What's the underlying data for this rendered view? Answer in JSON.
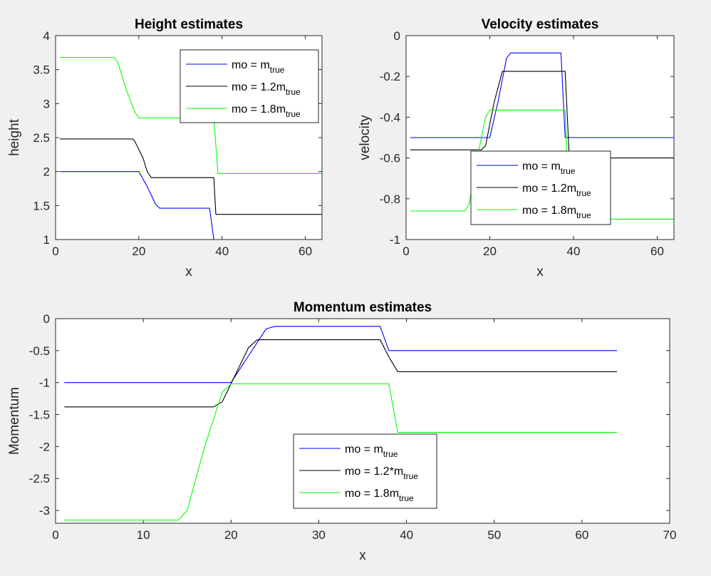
{
  "chart_data": [
    {
      "type": "line",
      "title": "Height estimates",
      "xlabel": "x",
      "ylabel": "height",
      "xlim": [
        0,
        64
      ],
      "ylim": [
        1,
        4
      ],
      "xticks": [
        "0",
        "20",
        "40",
        "60"
      ],
      "yticks": [
        "1",
        "1.5",
        "2",
        "2.5",
        "3",
        "3.5",
        "4"
      ],
      "legend_position": "top-right",
      "series": [
        {
          "name_prefix": "mo = ",
          "name_main": "m",
          "name_sub": "true",
          "color": "#0000ff",
          "x": [
            1,
            20,
            22,
            24,
            25,
            37,
            38,
            64
          ],
          "y": [
            2.0,
            2.0,
            1.78,
            1.52,
            1.46,
            1.46,
            1.0,
            1.0
          ]
        },
        {
          "name_prefix": "mo = ",
          "name_main": "1.2m",
          "name_sub": "true",
          "color": "#000000",
          "x": [
            1,
            18.5,
            19,
            21,
            22,
            23,
            38,
            38.5,
            64
          ],
          "y": [
            2.48,
            2.48,
            2.45,
            2.2,
            2.0,
            1.91,
            1.91,
            1.37,
            1.37
          ]
        },
        {
          "name_prefix": "mo = ",
          "name_main": "1.8m",
          "name_sub": "true",
          "color": "#00ff00",
          "x": [
            1,
            14,
            15,
            17,
            19,
            20,
            38,
            39,
            64
          ],
          "y": [
            3.68,
            3.68,
            3.6,
            3.2,
            2.88,
            2.79,
            2.79,
            1.97,
            1.97
          ]
        }
      ]
    },
    {
      "type": "line",
      "title": "Velocity estimates",
      "xlabel": "x",
      "ylabel": "velocity",
      "xlim": [
        0,
        64
      ],
      "ylim": [
        -1,
        0
      ],
      "xticks": [
        "0",
        "20",
        "40",
        "60"
      ],
      "yticks": [
        "-1",
        "-0.8",
        "-0.6",
        "-0.4",
        "-0.2",
        "0"
      ],
      "legend_position": "bottom-center",
      "series": [
        {
          "name_prefix": "mo = ",
          "name_main": "m",
          "name_sub": "true",
          "color": "#0000ff",
          "x": [
            1,
            20,
            22,
            24,
            25,
            37,
            38,
            64
          ],
          "y": [
            -0.5,
            -0.5,
            -0.32,
            -0.11,
            -0.085,
            -0.085,
            -0.5,
            -0.5
          ]
        },
        {
          "name_prefix": "mo = ",
          "name_main": "1.2m",
          "name_sub": "true",
          "color": "#000000",
          "x": [
            1,
            18,
            19,
            21,
            23,
            38,
            39,
            64
          ],
          "y": [
            -0.56,
            -0.56,
            -0.54,
            -0.33,
            -0.175,
            -0.175,
            -0.6,
            -0.6
          ]
        },
        {
          "name_prefix": "mo = ",
          "name_main": "1.8m",
          "name_sub": "true",
          "color": "#00ff00",
          "x": [
            1,
            14,
            15,
            17,
            19,
            20,
            38,
            39,
            64
          ],
          "y": [
            -0.86,
            -0.86,
            -0.83,
            -0.6,
            -0.4,
            -0.365,
            -0.365,
            -0.9,
            -0.9
          ]
        }
      ]
    },
    {
      "type": "line",
      "title": "Momentum estimates",
      "xlabel": "x",
      "ylabel": "Momentum",
      "xlim": [
        0,
        70
      ],
      "ylim": [
        -3.2,
        0
      ],
      "xticks": [
        "0",
        "10",
        "20",
        "30",
        "40",
        "50",
        "60",
        "70"
      ],
      "yticks": [
        "-3",
        "-2.5",
        "-2",
        "-1.5",
        "-1",
        "-0.5",
        "0"
      ],
      "legend_position": "bottom-center",
      "series": [
        {
          "name_prefix": "mo = ",
          "name_main": "m",
          "name_sub": "true",
          "color": "#0000ff",
          "x": [
            1,
            20,
            22,
            24,
            25,
            37,
            38,
            64
          ],
          "y": [
            -1.0,
            -1.0,
            -0.58,
            -0.16,
            -0.12,
            -0.12,
            -0.5,
            -0.5
          ]
        },
        {
          "name_prefix": "mo = ",
          "name_main": "1.2*m",
          "name_sub": "true",
          "color": "#000000",
          "x": [
            1,
            18,
            19,
            22,
            23,
            37,
            38,
            39,
            64
          ],
          "y": [
            -1.38,
            -1.38,
            -1.3,
            -0.45,
            -0.33,
            -0.33,
            -0.6,
            -0.83,
            -0.83
          ]
        },
        {
          "name_prefix": "mo = ",
          "name_main": "1.8m",
          "name_sub": "true",
          "color": "#00ff00",
          "x": [
            1,
            14,
            15,
            17,
            19,
            20,
            38,
            39,
            64
          ],
          "y": [
            -3.15,
            -3.15,
            -3.0,
            -2.0,
            -1.15,
            -1.02,
            -1.02,
            -1.78,
            -1.78
          ]
        }
      ]
    }
  ]
}
